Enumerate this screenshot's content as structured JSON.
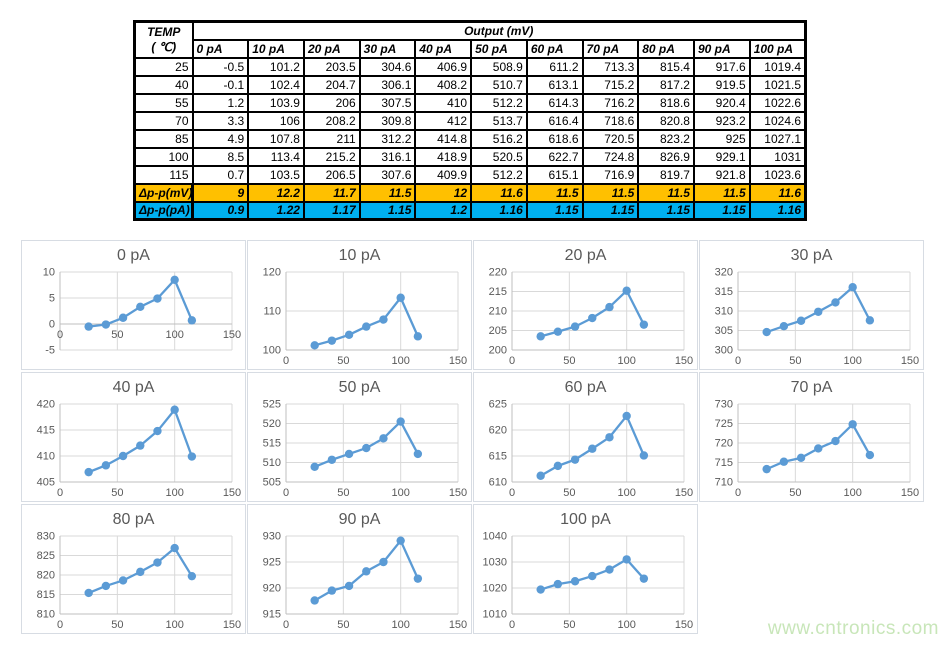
{
  "watermark": "www.cntronics.com",
  "colors": {
    "delta_mv_bg": "#FFC000",
    "delta_pa_bg": "#00B0F0",
    "chart_line": "#5B9BD5",
    "chart_text": "#595959",
    "gridline": "#D9D9D9",
    "axis_line": "#BFBFBF",
    "panel_border": "#D7DCE3",
    "watermark_color": "#C8E6B9"
  },
  "table": {
    "corner_title": "TEMP",
    "corner_subtitle": "( ℃)",
    "output_header": "Output (mV)",
    "col_headers": [
      "0 pA",
      "10 pA",
      "20 pA",
      "30 pA",
      "40 pA",
      "50 pA",
      "60 pA",
      "70 pA",
      "80 pA",
      "90 pA",
      "100 pA"
    ],
    "rows": [
      {
        "temp": "25",
        "values": [
          "-0.5",
          "101.2",
          "203.5",
          "304.6",
          "406.9",
          "508.9",
          "611.2",
          "713.3",
          "815.4",
          "917.6",
          "1019.4"
        ]
      },
      {
        "temp": "40",
        "values": [
          "-0.1",
          "102.4",
          "204.7",
          "306.1",
          "408.2",
          "510.7",
          "613.1",
          "715.2",
          "817.2",
          "919.5",
          "1021.5"
        ]
      },
      {
        "temp": "55",
        "values": [
          "1.2",
          "103.9",
          "206",
          "307.5",
          "410",
          "512.2",
          "614.3",
          "716.2",
          "818.6",
          "920.4",
          "1022.6"
        ]
      },
      {
        "temp": "70",
        "values": [
          "3.3",
          "106",
          "208.2",
          "309.8",
          "412",
          "513.7",
          "616.4",
          "718.6",
          "820.8",
          "923.2",
          "1024.6"
        ]
      },
      {
        "temp": "85",
        "values": [
          "4.9",
          "107.8",
          "211",
          "312.2",
          "414.8",
          "516.2",
          "618.6",
          "720.5",
          "823.2",
          "925",
          "1027.1"
        ]
      },
      {
        "temp": "100",
        "values": [
          "8.5",
          "113.4",
          "215.2",
          "316.1",
          "418.9",
          "520.5",
          "622.7",
          "724.8",
          "826.9",
          "929.1",
          "1031"
        ]
      },
      {
        "temp": "115",
        "values": [
          "0.7",
          "103.5",
          "206.5",
          "307.6",
          "409.9",
          "512.2",
          "615.1",
          "716.9",
          "819.7",
          "921.8",
          "1023.6"
        ]
      }
    ],
    "delta_rows": [
      {
        "label": "Δp-p(mV)",
        "bg": "#FFC000",
        "values": [
          "9",
          "12.2",
          "11.7",
          "11.5",
          "12",
          "11.6",
          "11.5",
          "11.5",
          "11.5",
          "11.5",
          "11.6"
        ]
      },
      {
        "label": "Δp-p(pA)",
        "bg": "#00B0F0",
        "values": [
          "0.9",
          "1.22",
          "1.17",
          "1.15",
          "1.2",
          "1.16",
          "1.15",
          "1.15",
          "1.15",
          "1.15",
          "1.16"
        ]
      }
    ]
  },
  "chart_data": [
    {
      "type": "line",
      "title": "0 pA",
      "x": [
        25,
        40,
        55,
        70,
        85,
        100,
        115
      ],
      "y": [
        -0.5,
        -0.1,
        1.2,
        3.3,
        4.9,
        8.5,
        0.7
      ],
      "ylim": [
        -5,
        10
      ],
      "ystep": 5,
      "xlim": [
        0,
        150
      ],
      "xticks": [
        0,
        50,
        100,
        150
      ],
      "grid": true,
      "legend": false
    },
    {
      "type": "line",
      "title": "10 pA",
      "x": [
        25,
        40,
        55,
        70,
        85,
        100,
        115
      ],
      "y": [
        101.2,
        102.4,
        103.9,
        106,
        107.8,
        113.4,
        103.5
      ],
      "ylim": [
        100,
        120
      ],
      "ystep": 10,
      "xlim": [
        0,
        150
      ],
      "xticks": [
        0,
        50,
        100,
        150
      ],
      "grid": true,
      "legend": false
    },
    {
      "type": "line",
      "title": "20 pA",
      "x": [
        25,
        40,
        55,
        70,
        85,
        100,
        115
      ],
      "y": [
        203.5,
        204.7,
        206,
        208.2,
        211,
        215.2,
        206.5
      ],
      "ylim": [
        200,
        220
      ],
      "ystep": 5,
      "xlim": [
        0,
        150
      ],
      "xticks": [
        0,
        50,
        100,
        150
      ],
      "grid": true,
      "legend": false
    },
    {
      "type": "line",
      "title": "30 pA",
      "x": [
        25,
        40,
        55,
        70,
        85,
        100,
        115
      ],
      "y": [
        304.6,
        306.1,
        307.5,
        309.8,
        312.2,
        316.1,
        307.6
      ],
      "ylim": [
        300,
        320
      ],
      "ystep": 5,
      "xlim": [
        0,
        150
      ],
      "xticks": [
        0,
        50,
        100,
        150
      ],
      "grid": true,
      "legend": false
    },
    {
      "type": "line",
      "title": "40 pA",
      "x": [
        25,
        40,
        55,
        70,
        85,
        100,
        115
      ],
      "y": [
        406.9,
        408.2,
        410,
        412,
        414.8,
        418.9,
        409.9
      ],
      "ylim": [
        405,
        420
      ],
      "ystep": 5,
      "xlim": [
        0,
        150
      ],
      "xticks": [
        0,
        50,
        100,
        150
      ],
      "grid": true,
      "legend": false
    },
    {
      "type": "line",
      "title": "50 pA",
      "x": [
        25,
        40,
        55,
        70,
        85,
        100,
        115
      ],
      "y": [
        508.9,
        510.7,
        512.2,
        513.7,
        516.2,
        520.5,
        512.2
      ],
      "ylim": [
        505,
        525
      ],
      "ystep": 5,
      "xlim": [
        0,
        150
      ],
      "xticks": [
        0,
        50,
        100,
        150
      ],
      "grid": true,
      "legend": false
    },
    {
      "type": "line",
      "title": "60 pA",
      "x": [
        25,
        40,
        55,
        70,
        85,
        100,
        115
      ],
      "y": [
        611.2,
        613.1,
        614.3,
        616.4,
        618.6,
        622.7,
        615.1
      ],
      "ylim": [
        610,
        625
      ],
      "ystep": 5,
      "xlim": [
        0,
        150
      ],
      "xticks": [
        0,
        50,
        100,
        150
      ],
      "grid": true,
      "legend": false
    },
    {
      "type": "line",
      "title": "70 pA",
      "x": [
        25,
        40,
        55,
        70,
        85,
        100,
        115
      ],
      "y": [
        713.3,
        715.2,
        716.2,
        718.6,
        720.5,
        724.8,
        716.9
      ],
      "ylim": [
        710,
        730
      ],
      "ystep": 5,
      "xlim": [
        0,
        150
      ],
      "xticks": [
        0,
        50,
        100,
        150
      ],
      "grid": true,
      "legend": false
    },
    {
      "type": "line",
      "title": "80 pA",
      "x": [
        25,
        40,
        55,
        70,
        85,
        100,
        115
      ],
      "y": [
        815.4,
        817.2,
        818.6,
        820.8,
        823.2,
        826.9,
        819.7
      ],
      "ylim": [
        810,
        830
      ],
      "ystep": 5,
      "xlim": [
        0,
        150
      ],
      "xticks": [
        0,
        50,
        100,
        150
      ],
      "grid": true,
      "legend": false
    },
    {
      "type": "line",
      "title": "90 pA",
      "x": [
        25,
        40,
        55,
        70,
        85,
        100,
        115
      ],
      "y": [
        917.6,
        919.5,
        920.4,
        923.2,
        925,
        929.1,
        921.8
      ],
      "ylim": [
        915,
        930
      ],
      "ystep": 5,
      "xlim": [
        0,
        150
      ],
      "xticks": [
        0,
        50,
        100,
        150
      ],
      "grid": true,
      "legend": false
    },
    {
      "type": "line",
      "title": "100 pA",
      "x": [
        25,
        40,
        55,
        70,
        85,
        100,
        115
      ],
      "y": [
        1019.4,
        1021.5,
        1022.6,
        1024.6,
        1027.1,
        1031,
        1023.6
      ],
      "ylim": [
        1010,
        1040
      ],
      "ystep": 10,
      "xlim": [
        0,
        150
      ],
      "xticks": [
        0,
        50,
        100,
        150
      ],
      "grid": true,
      "legend": false
    }
  ]
}
